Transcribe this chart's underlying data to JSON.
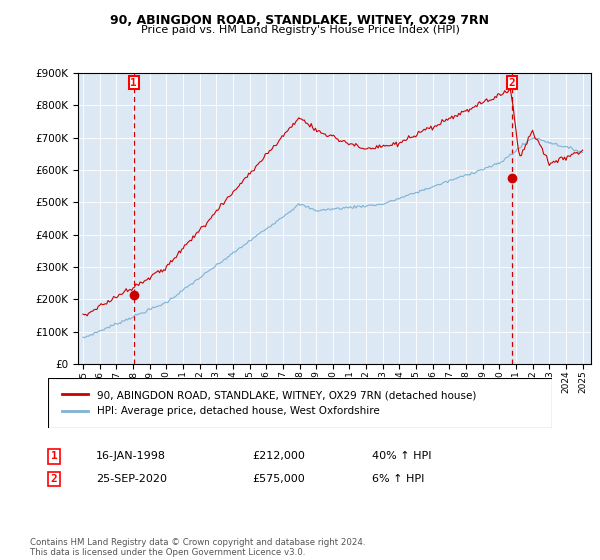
{
  "title": "90, ABINGDON ROAD, STANDLAKE, WITNEY, OX29 7RN",
  "subtitle": "Price paid vs. HM Land Registry's House Price Index (HPI)",
  "legend_line1": "90, ABINGDON ROAD, STANDLAKE, WITNEY, OX29 7RN (detached house)",
  "legend_line2": "HPI: Average price, detached house, West Oxfordshire",
  "sale1_date": "16-JAN-1998",
  "sale1_price": "£212,000",
  "sale1_hpi": "40% ↑ HPI",
  "sale1_year": 1998.04,
  "sale1_value": 212000,
  "sale2_date": "25-SEP-2020",
  "sale2_price": "£575,000",
  "sale2_hpi": "6% ↑ HPI",
  "sale2_year": 2020.73,
  "sale2_value": 575000,
  "footer": "Contains HM Land Registry data © Crown copyright and database right 2024.\nThis data is licensed under the Open Government Licence v3.0.",
  "red_color": "#cc0000",
  "blue_color": "#7fb3d3",
  "chart_bg": "#dce9f5",
  "ylim": [
    0,
    900000
  ],
  "xlim_start": 1994.7,
  "xlim_end": 2025.5
}
